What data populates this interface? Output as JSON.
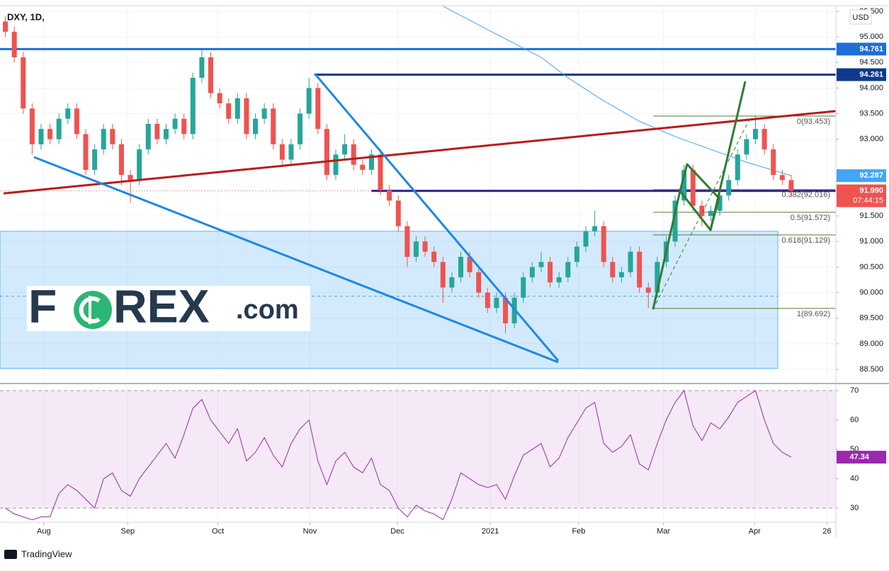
{
  "chart_data": {
    "type": "candlestick",
    "title": "DXY, 1D,",
    "footer": "TradingView",
    "currency": "USD",
    "up_color": "#26a69a",
    "down_color": "#ef5350",
    "grid": true,
    "xlim": [
      -0.6,
      93
    ],
    "ylim": [
      88.39,
      95.61
    ],
    "xticks": [
      {
        "value": 4.3,
        "label": "Aug"
      },
      {
        "value": 13.7,
        "label": "Sep"
      },
      {
        "value": 23.8,
        "label": "Oct"
      },
      {
        "value": 34.1,
        "label": "Nov"
      },
      {
        "value": 43.9,
        "label": "Dec"
      },
      {
        "value": 54.3,
        "label": "2021"
      },
      {
        "value": 64.2,
        "label": "Feb"
      },
      {
        "value": 73.7,
        "label": "Mar"
      },
      {
        "value": 83.9,
        "label": "Apr"
      },
      {
        "value": 92.0,
        "label": "26"
      }
    ],
    "yticks": [
      {
        "value": 95.5,
        "label": "95.500"
      },
      {
        "value": 95,
        "label": "95.000"
      },
      {
        "value": 94.5,
        "label": "94.500"
      },
      {
        "value": 94,
        "label": "94.000"
      },
      {
        "value": 93.5,
        "label": "93.500"
      },
      {
        "value": 93,
        "label": "93.000"
      },
      {
        "value": 91.5,
        "label": "91.500"
      },
      {
        "value": 91,
        "label": "91.000"
      },
      {
        "value": 90.5,
        "label": "90.500"
      },
      {
        "value": 90,
        "label": "90.000"
      },
      {
        "value": 89.5,
        "label": "89.500"
      },
      {
        "value": 89,
        "label": "89.000"
      },
      {
        "value": 88.5,
        "label": "88.500"
      }
    ],
    "ohlc": [
      [
        95.3,
        95.4,
        95.0,
        95.1
      ],
      [
        95.1,
        95.2,
        94.5,
        94.6
      ],
      [
        94.6,
        94.7,
        93.5,
        93.6
      ],
      [
        93.6,
        93.7,
        92.7,
        92.9
      ],
      [
        92.9,
        93.3,
        92.8,
        93.2
      ],
      [
        93.2,
        93.3,
        92.9,
        93.0
      ],
      [
        93.0,
        93.5,
        92.9,
        93.4
      ],
      [
        93.4,
        93.7,
        93.3,
        93.6
      ],
      [
        93.6,
        93.7,
        93.0,
        93.1
      ],
      [
        93.1,
        93.2,
        92.3,
        92.4
      ],
      [
        92.4,
        92.9,
        92.3,
        92.8
      ],
      [
        92.8,
        93.3,
        92.7,
        93.2
      ],
      [
        93.2,
        93.3,
        92.8,
        92.9
      ],
      [
        92.9,
        93.0,
        92.1,
        92.3
      ],
      [
        92.3,
        92.4,
        91.75,
        92.2
      ],
      [
        92.2,
        92.9,
        92.1,
        92.8
      ],
      [
        92.8,
        93.4,
        92.7,
        93.3
      ],
      [
        93.3,
        93.4,
        92.9,
        93.0
      ],
      [
        93.0,
        93.3,
        92.9,
        93.2
      ],
      [
        93.2,
        93.5,
        93.1,
        93.4
      ],
      [
        93.4,
        93.5,
        93.0,
        93.1
      ],
      [
        93.1,
        94.3,
        93.0,
        94.2
      ],
      [
        94.2,
        94.74,
        94.1,
        94.6
      ],
      [
        94.6,
        94.7,
        93.8,
        93.9
      ],
      [
        93.9,
        94.0,
        93.6,
        93.7
      ],
      [
        93.7,
        93.8,
        93.3,
        93.4
      ],
      [
        93.4,
        93.9,
        93.3,
        93.8
      ],
      [
        93.8,
        93.9,
        93.0,
        93.1
      ],
      [
        93.1,
        93.5,
        93.0,
        93.4
      ],
      [
        93.4,
        93.7,
        93.3,
        93.6
      ],
      [
        93.6,
        93.7,
        92.8,
        92.9
      ],
      [
        92.9,
        93.0,
        92.5,
        92.6
      ],
      [
        92.6,
        93.0,
        92.5,
        92.9
      ],
      [
        92.9,
        93.6,
        92.8,
        93.5
      ],
      [
        93.5,
        94.2,
        93.4,
        94.0
      ],
      [
        94.0,
        94.1,
        93.1,
        93.2
      ],
      [
        93.2,
        93.3,
        92.2,
        92.3
      ],
      [
        92.3,
        92.8,
        92.2,
        92.7
      ],
      [
        92.7,
        93.1,
        92.6,
        92.9
      ],
      [
        92.9,
        93.0,
        92.4,
        92.5
      ],
      [
        92.5,
        92.6,
        92.3,
        92.4
      ],
      [
        92.4,
        92.8,
        92.3,
        92.7
      ],
      [
        92.7,
        92.8,
        91.9,
        92.0
      ],
      [
        92.0,
        92.1,
        91.7,
        91.8
      ],
      [
        91.8,
        91.9,
        91.2,
        91.3
      ],
      [
        91.3,
        91.4,
        90.5,
        90.7
      ],
      [
        90.7,
        91.1,
        90.6,
        91.0
      ],
      [
        91.0,
        91.1,
        90.7,
        90.8
      ],
      [
        90.8,
        90.9,
        90.5,
        90.6
      ],
      [
        90.6,
        90.7,
        89.8,
        90.1
      ],
      [
        90.1,
        90.4,
        90.0,
        90.3
      ],
      [
        90.3,
        90.8,
        90.2,
        90.7
      ],
      [
        90.7,
        90.8,
        90.3,
        90.4
      ],
      [
        90.4,
        90.5,
        89.9,
        90.0
      ],
      [
        90.0,
        90.1,
        89.6,
        89.7
      ],
      [
        89.7,
        90.0,
        89.6,
        89.9
      ],
      [
        89.9,
        90.0,
        89.2,
        89.4
      ],
      [
        89.4,
        90.0,
        89.3,
        89.9
      ],
      [
        89.9,
        90.4,
        89.8,
        90.3
      ],
      [
        90.3,
        90.6,
        90.2,
        90.5
      ],
      [
        90.5,
        90.8,
        90.4,
        90.6
      ],
      [
        90.6,
        90.7,
        90.1,
        90.2
      ],
      [
        90.2,
        90.4,
        90.1,
        90.3
      ],
      [
        90.3,
        90.7,
        90.2,
        90.6
      ],
      [
        90.6,
        91.0,
        90.5,
        90.9
      ],
      [
        90.9,
        91.3,
        90.8,
        91.2
      ],
      [
        91.2,
        91.6,
        91.1,
        91.3
      ],
      [
        91.3,
        91.4,
        90.5,
        90.6
      ],
      [
        90.6,
        90.7,
        90.2,
        90.3
      ],
      [
        90.3,
        90.5,
        90.2,
        90.4
      ],
      [
        90.4,
        90.9,
        90.3,
        90.8
      ],
      [
        90.8,
        90.9,
        90.0,
        90.1
      ],
      [
        90.1,
        90.2,
        89.7,
        90.0
      ],
      [
        90.0,
        90.7,
        89.9,
        90.6
      ],
      [
        90.6,
        91.1,
        90.5,
        91.0
      ],
      [
        91.0,
        91.9,
        90.9,
        91.8
      ],
      [
        91.8,
        92.5,
        91.7,
        92.4
      ],
      [
        92.4,
        92.5,
        91.6,
        91.7
      ],
      [
        91.7,
        91.8,
        91.3,
        91.5
      ],
      [
        91.5,
        91.7,
        91.4,
        91.6
      ],
      [
        91.6,
        92.0,
        91.5,
        91.9
      ],
      [
        91.9,
        92.3,
        91.8,
        92.2
      ],
      [
        92.2,
        92.8,
        92.1,
        92.7
      ],
      [
        92.7,
        93.1,
        92.6,
        93.0
      ],
      [
        93.0,
        93.45,
        92.9,
        93.2
      ],
      [
        93.2,
        93.3,
        92.7,
        92.8
      ],
      [
        92.8,
        92.9,
        92.2,
        92.3
      ],
      [
        92.3,
        92.4,
        92.1,
        92.2
      ],
      [
        92.2,
        92.3,
        91.9,
        91.99
      ]
    ],
    "ma": {
      "color": "#42a5f5",
      "x": [
        49,
        55,
        60,
        63,
        67,
        71,
        75,
        79,
        83,
        88
      ],
      "values": [
        95.6,
        95.05,
        94.6,
        94.2,
        93.75,
        93.35,
        93.05,
        92.8,
        92.55,
        92.287
      ]
    },
    "price_line": {
      "value": 91.99,
      "label": "91.990",
      "countdown": "07:44:15",
      "color": "#ef5350"
    },
    "levels": [
      {
        "value": 94.761,
        "label": "94.761",
        "color": "#1e6fd9",
        "from": -0.6,
        "width": 3
      },
      {
        "value": 94.261,
        "label": "94.261",
        "color": "#0d3a8a",
        "from": 34.6,
        "width": 3
      },
      {
        "value": 91.99,
        "color": "#311b92",
        "from": 41,
        "width": 3
      }
    ],
    "zone": {
      "x": [
        -0.6,
        86.5
      ],
      "y": [
        91.2,
        88.52
      ],
      "fill": "rgba(33,150,243,0.2)",
      "stroke": "#64b5f6"
    },
    "dashed_level": {
      "value": 89.93,
      "x": [
        -0.6,
        86.5
      ],
      "color": "#42a5f5"
    },
    "trendlines": [
      {
        "x": [
          -0.2,
          93.0
        ],
        "y": [
          91.94,
          93.55
        ],
        "color": "#b71c1c",
        "width": 3
      },
      {
        "x": [
          3.2,
          61.9
        ],
        "y": [
          92.65,
          88.64
        ],
        "color": "#1e88e5",
        "width": 3
      },
      {
        "x": [
          34.7,
          61.9
        ],
        "y": [
          94.27,
          88.67
        ],
        "color": "#1e88e5",
        "width": 3
      },
      {
        "x": [
          72.53,
          75.55
        ],
        "y": [
          89.675,
          91.985
        ],
        "color": "#2e7d32",
        "width": 3
      },
      {
        "x": [
          75.55,
          76.34,
          79.9,
          78.96,
          75.55
        ],
        "y": [
          91.985,
          92.51,
          91.85,
          91.224,
          91.985
        ],
        "color": "#2e7d32",
        "width": 3
      },
      {
        "x": [
          78.96,
          82.85
        ],
        "y": [
          91.224,
          94.129
        ],
        "color": "#2e7d32",
        "width": 3
      },
      {
        "x": [
          72.53,
          83.48
        ],
        "y": [
          89.675,
          93.44
        ],
        "color": "#2e7d32",
        "width": 1,
        "dashed": true
      }
    ],
    "fib": {
      "x": [
        72.53,
        93.0
      ],
      "color": "#557a3a",
      "levels": [
        {
          "value": 93.453,
          "label": "0(93.453)"
        },
        {
          "value": 92.016,
          "label": "0.382(92.016)"
        },
        {
          "value": 91.572,
          "label": "0.5(91.572)"
        },
        {
          "value": 91.129,
          "label": "0.618(91.129)"
        },
        {
          "value": 89.692,
          "label": "1(89.692)"
        }
      ]
    },
    "rsi": {
      "color": "#9c27b0",
      "ylim": [
        25.2,
        71.7
      ],
      "yticks": [
        70,
        60,
        50,
        40,
        30
      ],
      "band": [
        30,
        70
      ],
      "values": [
        30,
        28,
        27,
        26,
        27,
        27,
        35,
        38,
        36,
        33,
        30,
        40,
        42,
        36,
        34,
        40,
        44,
        48,
        52,
        47,
        55,
        64,
        67,
        60,
        56,
        52,
        57,
        46,
        49,
        54,
        48,
        44,
        52,
        57,
        60,
        46,
        38,
        46,
        49,
        44,
        42,
        47,
        38,
        36,
        30,
        27,
        31,
        29,
        28,
        26,
        33,
        42,
        40,
        38,
        37,
        38,
        33,
        41,
        48,
        50,
        52,
        44,
        47,
        54,
        59,
        64,
        66,
        52,
        49,
        51,
        55,
        45,
        43,
        52,
        60,
        66,
        70,
        58,
        53,
        59,
        57,
        61,
        66,
        68,
        70,
        60,
        52,
        49,
        47.34
      ]
    }
  },
  "logo": {
    "left": "F",
    "right": "REX",
    "suffix": ".com"
  }
}
